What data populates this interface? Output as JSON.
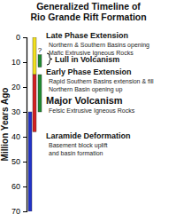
{
  "chart_data": {
    "type": "timeline",
    "title": "Generalized Timeline of\nRio Grande Rift Formation",
    "y_label": "Million Years Ago",
    "ylim": [
      0,
      70
    ],
    "yticks": [
      0,
      10,
      20,
      30,
      40,
      50,
      60,
      70
    ],
    "periods": [
      {
        "label": "Late Phase Extension",
        "notes": [
          "Northern & Southern Basins opening",
          "Mafic Extrusive Igneous Rocks"
        ],
        "start": 0,
        "end": 15,
        "color": "#f2e01e"
      },
      {
        "label": "Lull in Volcanism",
        "notes": [],
        "query": "?",
        "start": 7,
        "end": 12,
        "color": "#1f8a30"
      },
      {
        "label": "Early Phase Extension",
        "notes": [
          "Rapid Southern Basins extension & fill",
          "Northern Basin opening up"
        ],
        "start": 15,
        "end": 30,
        "color": "#1f8a30"
      },
      {
        "label": "Major Volcanism",
        "notes": [
          "Felsic Extrusive Igneous Rocks"
        ],
        "start": 15,
        "end": 38,
        "color": "#d42020"
      },
      {
        "label": "Laramide Deformation",
        "notes": [
          "Basement block uplift",
          "and basin formation"
        ],
        "start": 30,
        "end": 70,
        "color": "#2233c8"
      }
    ]
  }
}
